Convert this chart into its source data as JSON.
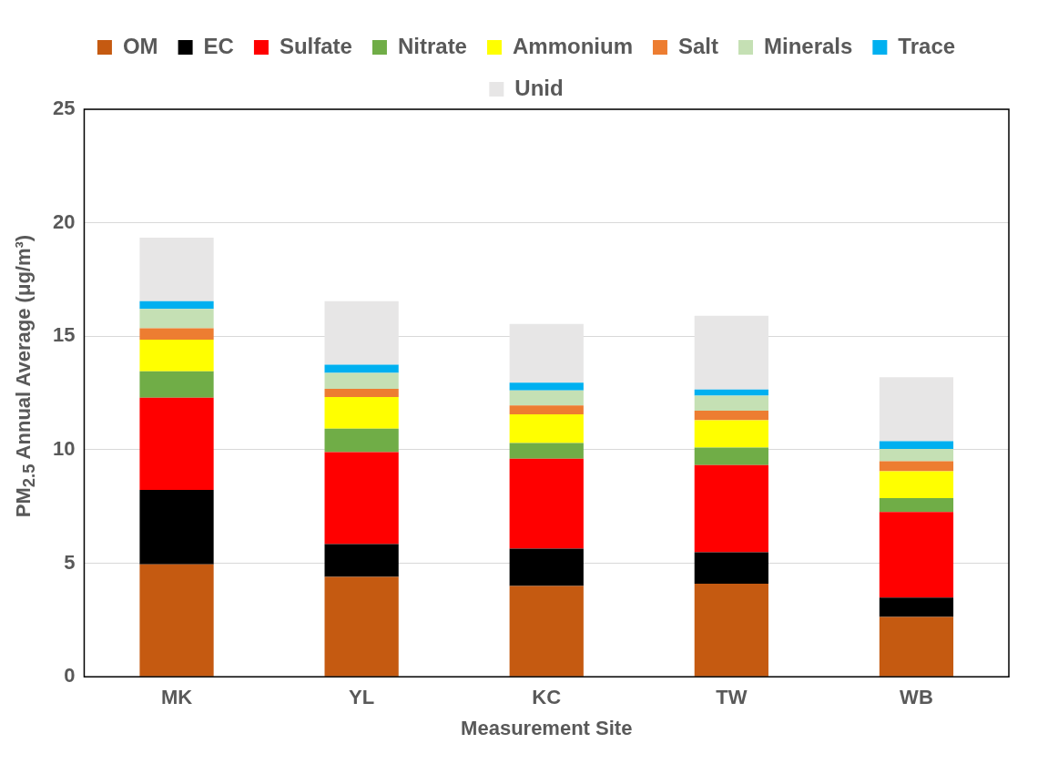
{
  "chart_data": {
    "type": "bar",
    "stacked": true,
    "xlabel": "Measurement Site",
    "ylabel": "PM$_{2.5}$ Annual Average (μg/m³)",
    "categories": [
      "MK",
      "YL",
      "KC",
      "TW",
      "WB"
    ],
    "ylim": [
      0,
      25
    ],
    "yticks": [
      0,
      5,
      10,
      15,
      20,
      25
    ],
    "grid": "y",
    "legend": "top",
    "series": [
      {
        "name": "OM",
        "color": "#c55a11",
        "values": [
          4.95,
          4.4,
          4.0,
          4.1,
          2.64
        ]
      },
      {
        "name": "EC",
        "color": "#000000",
        "values": [
          3.28,
          1.44,
          1.64,
          1.38,
          0.85
        ]
      },
      {
        "name": "Sulfate",
        "color": "#ff0000",
        "values": [
          4.06,
          4.06,
          3.97,
          3.84,
          3.77
        ]
      },
      {
        "name": "Nitrate",
        "color": "#70ad47",
        "values": [
          1.17,
          1.03,
          0.69,
          0.78,
          0.61
        ]
      },
      {
        "name": "Ammonium",
        "color": "#ffff00",
        "values": [
          1.39,
          1.39,
          1.26,
          1.2,
          1.18
        ]
      },
      {
        "name": "Salt",
        "color": "#ed7d31",
        "values": [
          0.5,
          0.36,
          0.39,
          0.42,
          0.45
        ]
      },
      {
        "name": "Minerals",
        "color": "#c5e0b4",
        "values": [
          0.85,
          0.71,
          0.66,
          0.66,
          0.54
        ]
      },
      {
        "name": "Trace",
        "color": "#00b0f0",
        "values": [
          0.35,
          0.36,
          0.35,
          0.27,
          0.34
        ]
      },
      {
        "name": "Unid",
        "color": "#e7e6e6",
        "values": [
          2.79,
          2.8,
          2.58,
          3.25,
          2.82
        ]
      }
    ]
  }
}
